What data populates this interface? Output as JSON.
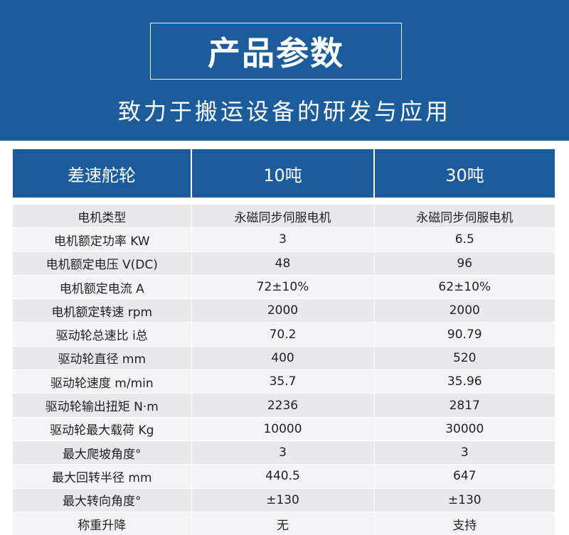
{
  "header": {
    "title": "产品参数",
    "subtitle": "致力于搬运设备的研发与应用"
  },
  "table": {
    "columns": [
      "差速舵轮",
      "10吨",
      "30吨"
    ],
    "rows": [
      [
        "电机类型",
        "永磁同步伺服电机",
        "永磁同步伺服电机"
      ],
      [
        "电机额定功率 KW",
        "3",
        "6.5"
      ],
      [
        "电机额定电压 V(DC)",
        "48",
        "96"
      ],
      [
        "电机额定电流 A",
        "72±10%",
        "62±10%"
      ],
      [
        "电机额定转速 rpm",
        "2000",
        "2000"
      ],
      [
        "驱动轮总速比 i总",
        "70.2",
        "90.79"
      ],
      [
        "驱动轮直径 mm",
        "400",
        "520"
      ],
      [
        "驱动轮速度 m/min",
        "35.7",
        "35.96"
      ],
      [
        "驱动轮输出扭矩 N·m",
        "2236",
        "2817"
      ],
      [
        "驱动轮最大载荷 Kg",
        "10000",
        "30000"
      ],
      [
        "最大爬坡角度°",
        "3",
        "3"
      ],
      [
        "最大回转半径 mm",
        "440.5",
        "647"
      ],
      [
        "最大转向角度°",
        "±130",
        "±130"
      ],
      [
        "称重升降",
        "无",
        "支持"
      ]
    ]
  },
  "colors": {
    "brand_blue": "#1d5c9c",
    "row_light": "#f4f4f6",
    "row_dark": "#e9e9ec"
  }
}
